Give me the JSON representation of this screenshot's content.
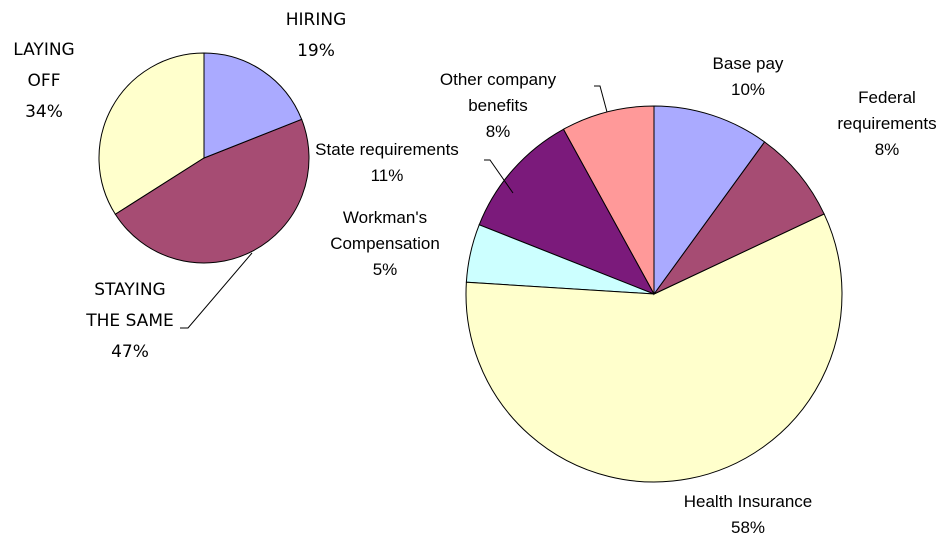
{
  "chart_data": [
    {
      "type": "pie",
      "categories": [
        "HIRING",
        "STAYING THE SAME",
        "LAYING OFF"
      ],
      "values": [
        19,
        47,
        34
      ],
      "value_labels": [
        "19%",
        "47%",
        "34%"
      ],
      "colors": [
        "#aaaaff",
        "#a64c73",
        "#ffffcc"
      ]
    },
    {
      "type": "pie",
      "categories": [
        "Base pay",
        "Federal requirements",
        "Health Insurance",
        "Workman's Compensation",
        "State requirements",
        "Other company benefits"
      ],
      "values": [
        10,
        8,
        58,
        5,
        11,
        8
      ],
      "value_labels": [
        "10%",
        "8%",
        "58%",
        "5%",
        "11%",
        "8%"
      ],
      "colors": [
        "#aaaaff",
        "#a64c73",
        "#ffffcc",
        "#ccffff",
        "#7b1a7b",
        "#ff9999"
      ]
    }
  ]
}
